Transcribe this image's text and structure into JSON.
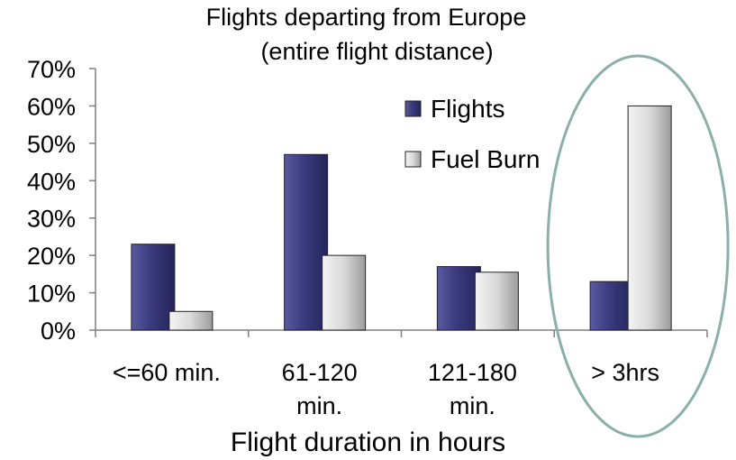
{
  "chart_data": {
    "type": "bar",
    "title": [
      "Flights departing from Europe",
      "(entire flight distance)"
    ],
    "xlabel": "Flight duration in hours",
    "ylabel": "",
    "ylim": [
      0,
      70
    ],
    "yticks": [
      "0%",
      "10%",
      "20%",
      "30%",
      "40%",
      "50%",
      "60%",
      "70%"
    ],
    "categories": [
      [
        "<=60 min."
      ],
      [
        "61-120",
        "min."
      ],
      [
        "121-180",
        "min."
      ],
      [
        "> 3hrs"
      ]
    ],
    "series": [
      {
        "name": "Flights",
        "values": [
          23,
          47,
          17,
          13
        ],
        "color": "#3a3a7e"
      },
      {
        "name": "Fuel Burn",
        "values": [
          5,
          20,
          15.5,
          60
        ],
        "color": "#cfcfcf"
      }
    ],
    "grid": false,
    "legend": "top-right, inside plot",
    "highlight": {
      "shape": "ellipse",
      "category": "> 3hrs",
      "color": "#8ab0a8"
    }
  }
}
